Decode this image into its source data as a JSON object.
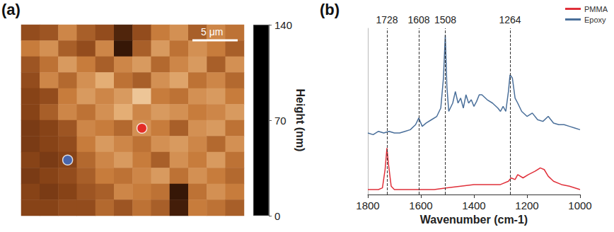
{
  "chart_data": [
    {
      "type": "heatmap",
      "panel_label": "(a)",
      "scale_bar": "5 μm",
      "tick_labels": false,
      "cells": [
        [
          60,
          65,
          90,
          70,
          60,
          35,
          60,
          85,
          95,
          70,
          90,
          80
        ],
        [
          85,
          95,
          70,
          60,
          90,
          25,
          70,
          100,
          80,
          95,
          85,
          70
        ],
        [
          65,
          80,
          100,
          85,
          70,
          90,
          100,
          75,
          90,
          100,
          70,
          95
        ],
        [
          60,
          90,
          75,
          95,
          110,
          80,
          70,
          95,
          105,
          80,
          90,
          75
        ],
        [
          55,
          60,
          85,
          100,
          90,
          100,
          120,
          85,
          80,
          95,
          100,
          85
        ],
        [
          55,
          70,
          90,
          80,
          95,
          110,
          90,
          100,
          95,
          85,
          90,
          100
        ],
        [
          50,
          55,
          65,
          90,
          85,
          75,
          95,
          85,
          70,
          95,
          100,
          80
        ],
        [
          50,
          55,
          60,
          85,
          100,
          90,
          80,
          95,
          100,
          90,
          75,
          95
        ],
        [
          55,
          50,
          55,
          75,
          90,
          100,
          85,
          70,
          95,
          85,
          100,
          80
        ],
        [
          50,
          55,
          60,
          70,
          85,
          80,
          90,
          100,
          80,
          95,
          85,
          75
        ],
        [
          55,
          50,
          55,
          65,
          70,
          90,
          85,
          80,
          25,
          80,
          95,
          85
        ],
        [
          55,
          55,
          60,
          60,
          75,
          65,
          80,
          70,
          30,
          85,
          80,
          70
        ]
      ],
      "colorbar": {
        "title": "Height (nm)",
        "range": [
          0,
          140
        ],
        "ticks": [
          0,
          70,
          140
        ]
      },
      "markers": [
        {
          "color": "#e8141b",
          "col": 6.3,
          "row": 5.7
        },
        {
          "color": "#3a6fd0",
          "col": 1.7,
          "row": 8.4
        }
      ]
    },
    {
      "type": "line",
      "panel_label": "(b)",
      "x_label": "Wavenumber (cm-1)",
      "xlim": [
        1800,
        1000
      ],
      "xticks": [
        1800,
        1600,
        1400,
        1200,
        1000
      ],
      "ylim": [
        0,
        1
      ],
      "tick_labels": "x",
      "legend": "upper right",
      "peak_lines": [
        1728,
        1608,
        1508,
        1264
      ],
      "series": [
        {
          "name": "PMMA",
          "color": "#e0303a",
          "x": [
            1800,
            1760,
            1745,
            1735,
            1728,
            1722,
            1712,
            1700,
            1650,
            1608,
            1550,
            1500,
            1450,
            1400,
            1350,
            1300,
            1270,
            1260,
            1245,
            1235,
            1215,
            1195,
            1170,
            1150,
            1135,
            1120,
            1100,
            1070,
            1040,
            1000
          ],
          "values": [
            0.03,
            0.03,
            0.04,
            0.15,
            0.28,
            0.18,
            0.05,
            0.03,
            0.03,
            0.03,
            0.03,
            0.04,
            0.05,
            0.06,
            0.06,
            0.06,
            0.08,
            0.1,
            0.09,
            0.12,
            0.1,
            0.12,
            0.14,
            0.16,
            0.15,
            0.11,
            0.08,
            0.06,
            0.05,
            0.03
          ]
        },
        {
          "name": "Epoxy",
          "color": "#4a6f9a",
          "x": [
            1800,
            1780,
            1760,
            1740,
            1720,
            1700,
            1680,
            1660,
            1640,
            1620,
            1608,
            1595,
            1580,
            1560,
            1540,
            1525,
            1515,
            1508,
            1502,
            1495,
            1480,
            1470,
            1460,
            1450,
            1440,
            1430,
            1420,
            1410,
            1400,
            1390,
            1380,
            1370,
            1350,
            1330,
            1310,
            1300,
            1290,
            1280,
            1270,
            1264,
            1255,
            1245,
            1235,
            1220,
            1200,
            1180,
            1160,
            1140,
            1120,
            1100,
            1080,
            1060,
            1040,
            1020,
            1000
          ],
          "values": [
            0.37,
            0.36,
            0.38,
            0.37,
            0.38,
            0.37,
            0.37,
            0.38,
            0.39,
            0.42,
            0.46,
            0.41,
            0.43,
            0.45,
            0.47,
            0.52,
            0.7,
            0.96,
            0.65,
            0.5,
            0.55,
            0.62,
            0.55,
            0.58,
            0.52,
            0.6,
            0.55,
            0.57,
            0.53,
            0.56,
            0.6,
            0.6,
            0.57,
            0.55,
            0.52,
            0.5,
            0.53,
            0.5,
            0.62,
            0.72,
            0.7,
            0.58,
            0.55,
            0.5,
            0.47,
            0.49,
            0.45,
            0.44,
            0.47,
            0.43,
            0.42,
            0.42,
            0.41,
            0.4,
            0.39
          ]
        }
      ]
    }
  ]
}
